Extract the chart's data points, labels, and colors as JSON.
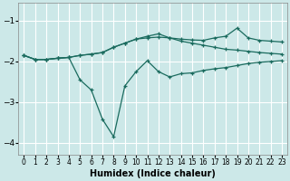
{
  "background_color": "#cce8e8",
  "grid_color": "#ffffff",
  "line_color": "#1a6b5e",
  "marker": "+",
  "xlabel": "Humidex (Indice chaleur)",
  "xlim": [
    -0.5,
    23.5
  ],
  "ylim": [
    -4.3,
    -0.55
  ],
  "yticks": [
    -4,
    -3,
    -2,
    -1
  ],
  "xticks": [
    0,
    1,
    2,
    3,
    4,
    5,
    6,
    7,
    8,
    9,
    10,
    11,
    12,
    13,
    14,
    15,
    16,
    17,
    18,
    19,
    20,
    21,
    22,
    23
  ],
  "lines": [
    {
      "x": [
        0,
        1,
        2,
        3,
        4,
        5,
        6,
        7,
        8,
        9,
        10,
        11,
        12,
        13,
        14,
        15,
        16,
        17,
        18,
        19,
        20,
        21,
        22,
        23
      ],
      "y": [
        -1.85,
        -1.95,
        -1.95,
        -1.92,
        -1.9,
        -1.85,
        -1.82,
        -1.78,
        -1.65,
        -1.55,
        -1.45,
        -1.42,
        -1.4,
        -1.42,
        -1.45,
        -1.47,
        -1.48,
        -1.42,
        -1.38,
        -1.18,
        -1.42,
        -1.48,
        -1.5,
        -1.52
      ]
    },
    {
      "x": [
        0,
        1,
        2,
        3,
        4,
        5,
        6,
        7,
        8,
        9,
        10,
        11,
        12,
        13,
        14,
        15,
        16,
        17,
        18,
        19,
        20,
        21,
        22,
        23
      ],
      "y": [
        -1.85,
        -1.95,
        -1.95,
        -1.92,
        -1.9,
        -2.45,
        -2.7,
        -3.42,
        -3.85,
        -2.6,
        -2.25,
        -1.98,
        -2.25,
        -2.38,
        -2.3,
        -2.28,
        -2.22,
        -2.18,
        -2.15,
        -2.1,
        -2.05,
        -2.02,
        -2.0,
        -1.98
      ]
    },
    {
      "x": [
        0,
        1,
        2,
        3,
        4,
        5,
        6,
        7,
        8,
        9,
        10,
        11,
        12,
        13,
        14,
        15,
        16,
        17,
        18,
        19,
        20,
        21,
        22,
        23
      ],
      "y": [
        -1.85,
        -1.95,
        -1.95,
        -1.92,
        -1.9,
        -1.85,
        -1.82,
        -1.78,
        -1.65,
        -1.55,
        -1.45,
        -1.38,
        -1.32,
        -1.42,
        -1.5,
        -1.55,
        -1.6,
        -1.65,
        -1.7,
        -1.72,
        -1.75,
        -1.78,
        -1.8,
        -1.82
      ]
    }
  ]
}
